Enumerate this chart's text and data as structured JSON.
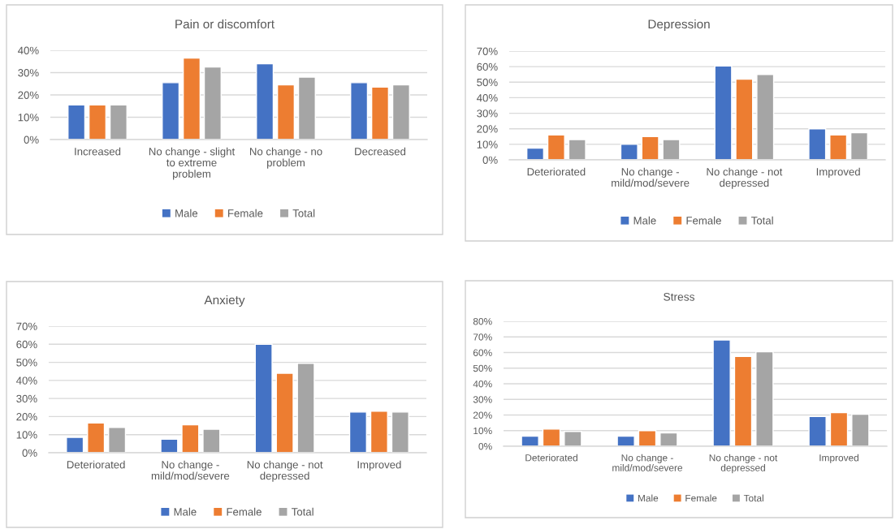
{
  "chart_data": [
    {
      "type": "bar",
      "title": "Pain or discomfort",
      "categories": [
        "Increased",
        "No change - slight\nto extreme\nproblem",
        "No change - no\nproblem",
        "Decreased"
      ],
      "series": [
        {
          "name": "Male",
          "color": "#4472c4",
          "values": [
            15.5,
            25.5,
            34,
            25.5
          ]
        },
        {
          "name": "Female",
          "color": "#ed7d31",
          "values": [
            15.5,
            36.5,
            24.5,
            23.5
          ]
        },
        {
          "name": "Total",
          "color": "#a5a5a5",
          "values": [
            15.5,
            32.5,
            28,
            24.5
          ]
        }
      ],
      "ylim": [
        0,
        40
      ],
      "yticks": [
        {
          "value": 0,
          "label": "0%"
        },
        {
          "value": 10,
          "label": "10%"
        },
        {
          "value": 20,
          "label": "20%"
        },
        {
          "value": 30,
          "label": "30%"
        },
        {
          "value": 40,
          "label": "40%"
        }
      ],
      "grid": "y",
      "legend": "bottom"
    },
    {
      "type": "bar",
      "title": "Depression",
      "categories": [
        "Deteriorated",
        "No change -\nmild/mod/severe",
        "No change - not\ndepressed",
        "Improved"
      ],
      "series": [
        {
          "name": "Male",
          "color": "#4472c4",
          "values": [
            7.5,
            10,
            60.5,
            20
          ]
        },
        {
          "name": "Female",
          "color": "#ed7d31",
          "values": [
            16,
            15,
            52,
            16
          ]
        },
        {
          "name": "Total",
          "color": "#a5a5a5",
          "values": [
            13,
            13,
            55,
            17.5
          ]
        }
      ],
      "ylim": [
        0,
        70
      ],
      "yticks": [
        {
          "value": 0,
          "label": "0%"
        },
        {
          "value": 10,
          "label": "10%"
        },
        {
          "value": 20,
          "label": "20%"
        },
        {
          "value": 30,
          "label": "30%"
        },
        {
          "value": 40,
          "label": "40%"
        },
        {
          "value": 50,
          "label": "50%"
        },
        {
          "value": 60,
          "label": "60%"
        },
        {
          "value": 70,
          "label": "70%"
        }
      ],
      "grid": "y",
      "legend": "bottom"
    },
    {
      "type": "bar",
      "title": "Anxiety",
      "categories": [
        "Deteriorated",
        "No change -\nmild/mod/severe",
        "No change - not\ndepressed",
        "Improved"
      ],
      "series": [
        {
          "name": "Male",
          "color": "#4472c4",
          "values": [
            8.5,
            7.5,
            60,
            22.5
          ]
        },
        {
          "name": "Female",
          "color": "#ed7d31",
          "values": [
            16.5,
            15.5,
            44,
            23
          ]
        },
        {
          "name": "Total",
          "color": "#a5a5a5",
          "values": [
            14,
            13,
            49.5,
            22.5
          ]
        }
      ],
      "ylim": [
        0,
        70
      ],
      "yticks": [
        {
          "value": 0,
          "label": "0%"
        },
        {
          "value": 10,
          "label": "10%"
        },
        {
          "value": 20,
          "label": "20%"
        },
        {
          "value": 30,
          "label": "30%"
        },
        {
          "value": 40,
          "label": "40%"
        },
        {
          "value": 50,
          "label": "50%"
        },
        {
          "value": 60,
          "label": "60%"
        },
        {
          "value": 70,
          "label": "70%"
        }
      ],
      "grid": "y",
      "legend": "bottom"
    },
    {
      "type": "bar",
      "title": "Stress",
      "categories": [
        "Deteriorated",
        "No change -\nmild/mod/severe",
        "No change - not\ndepressed",
        "Improved"
      ],
      "series": [
        {
          "name": "Male",
          "color": "#4472c4",
          "values": [
            6.5,
            6.5,
            68,
            19
          ]
        },
        {
          "name": "Female",
          "color": "#ed7d31",
          "values": [
            11,
            10,
            57.5,
            21.5
          ]
        },
        {
          "name": "Total",
          "color": "#a5a5a5",
          "values": [
            9.5,
            8.5,
            60.5,
            20.5
          ]
        }
      ],
      "ylim": [
        0,
        80
      ],
      "yticks": [
        {
          "value": 0,
          "label": "0%"
        },
        {
          "value": 10,
          "label": "10%"
        },
        {
          "value": 20,
          "label": "20%"
        },
        {
          "value": 30,
          "label": "30%"
        },
        {
          "value": 40,
          "label": "40%"
        },
        {
          "value": 50,
          "label": "50%"
        },
        {
          "value": 60,
          "label": "60%"
        },
        {
          "value": 70,
          "label": "70%"
        },
        {
          "value": 80,
          "label": "80%"
        }
      ],
      "grid": "y",
      "legend": "bottom"
    }
  ]
}
